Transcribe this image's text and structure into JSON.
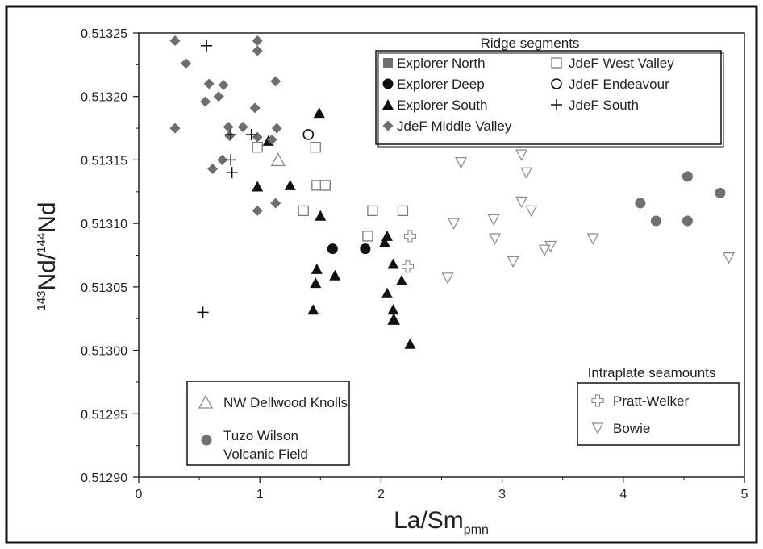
{
  "chart_data": {
    "type": "scatter",
    "xlabel": {
      "main": "La/Sm",
      "sub": "pmn"
    },
    "ylabel": {
      "sup": "143",
      "main1": "Nd/",
      "sup2": "144",
      "main2": "Nd"
    },
    "xlim": [
      0,
      5
    ],
    "ylim": [
      0.5129,
      0.51325
    ],
    "xticks": [
      "0",
      "1",
      "2",
      "3",
      "4",
      "5"
    ],
    "yticks": [
      "0.51290",
      "0.51295",
      "0.51300",
      "0.51305",
      "0.51310",
      "0.51315",
      "0.51320",
      "0.51325"
    ],
    "grid": false,
    "legends": {
      "ridge_title": "Ridge segments",
      "intraplate_title": "Intraplate seamounts"
    },
    "series": [
      {
        "name": "Explorer North",
        "marker": "square-filled",
        "color": "#6e6e6e",
        "legend_group": "ridge",
        "x": [],
        "y": []
      },
      {
        "name": "Explorer Deep",
        "marker": "circle-filled",
        "color": "#111111",
        "legend_group": "ridge",
        "x": [
          1.6,
          1.87
        ],
        "y": [
          0.51308,
          0.51308
        ]
      },
      {
        "name": "Explorer South",
        "marker": "triangle-filled",
        "color": "#111111",
        "legend_group": "ridge",
        "x": [
          1.49,
          1.07,
          1.25,
          0.98,
          1.5,
          1.47,
          1.46,
          1.62,
          1.44,
          2.05,
          2.03,
          2.1,
          2.05,
          2.17,
          2.1,
          2.11,
          2.1,
          2.24
        ],
        "y": [
          0.513187,
          0.513165,
          0.51313,
          0.513129,
          0.513106,
          0.513064,
          0.513053,
          0.513059,
          0.513032,
          0.51309,
          0.513085,
          0.513068,
          0.513045,
          0.513055,
          0.513032,
          0.513024,
          0.513024,
          0.513005
        ]
      },
      {
        "name": "JdeF Middle Valley",
        "marker": "diamond-filled",
        "color": "#6e6e6e",
        "legend_group": "ridge",
        "x": [
          0.3,
          0.39,
          0.98,
          0.98,
          0.58,
          0.7,
          0.66,
          0.55,
          0.96,
          1.13,
          0.74,
          0.86,
          0.3,
          0.75,
          0.98,
          1.1,
          1.14,
          0.69,
          0.61,
          0.98,
          1.13
        ],
        "y": [
          0.513244,
          0.513226,
          0.513244,
          0.513236,
          0.51321,
          0.513209,
          0.5132,
          0.513196,
          0.513191,
          0.513212,
          0.513176,
          0.513176,
          0.513175,
          0.513169,
          0.513168,
          0.513166,
          0.513175,
          0.51315,
          0.513143,
          0.51311,
          0.513116
        ]
      },
      {
        "name": "JdeF West Valley",
        "marker": "square-open",
        "color": "#7a7a7a",
        "legend_group": "ridge",
        "x": [
          0.98,
          1.46,
          1.47,
          1.54,
          1.36,
          1.93,
          2.18,
          1.89
        ],
        "y": [
          0.51316,
          0.51316,
          0.51313,
          0.51313,
          0.51311,
          0.51311,
          0.51311,
          0.51309
        ]
      },
      {
        "name": "JdeF Endeavour",
        "marker": "circle-open",
        "color": "#111111",
        "legend_group": "ridge",
        "x": [
          1.4
        ],
        "y": [
          0.51317
        ]
      },
      {
        "name": "JdeF South",
        "marker": "plus",
        "color": "#111111",
        "legend_group": "ridge",
        "x": [
          0.56,
          0.76,
          0.93,
          0.76,
          0.77,
          0.53
        ],
        "y": [
          0.51324,
          0.51317,
          0.51317,
          0.51315,
          0.51314,
          0.51303
        ]
      },
      {
        "name": "NW Dellwood Knolls",
        "marker": "triangle-open",
        "color": "#8a8a8a",
        "legend_group": "dellwood",
        "x": [
          1.15
        ],
        "y": [
          0.51315
        ]
      },
      {
        "name": "Tuzo Wilson Volcanic Field",
        "marker": "circle-filled",
        "color": "#707070",
        "legend_group": "dellwood",
        "x": [
          4.53,
          4.8,
          4.14,
          4.27,
          4.53
        ],
        "y": [
          0.513137,
          0.513124,
          0.513116,
          0.513102,
          0.513102
        ]
      },
      {
        "name": "Pratt-Welker",
        "marker": "plus-open",
        "color": "#8a8a8a",
        "legend_group": "intraplate",
        "x": [
          2.24,
          2.22
        ],
        "y": [
          0.51309,
          0.513066
        ]
      },
      {
        "name": "Bowie",
        "marker": "triangle-down-open",
        "color": "#8a8a8a",
        "legend_group": "intraplate",
        "x": [
          3.16,
          2.66,
          3.2,
          3.16,
          3.24,
          2.93,
          2.6,
          2.94,
          3.4,
          3.35,
          3.75,
          3.09,
          4.87,
          2.55
        ],
        "y": [
          0.513154,
          0.513148,
          0.51314,
          0.513117,
          0.51311,
          0.513103,
          0.5131,
          0.513088,
          0.513082,
          0.513079,
          0.513088,
          0.51307,
          0.513073,
          0.513057
        ]
      }
    ]
  }
}
